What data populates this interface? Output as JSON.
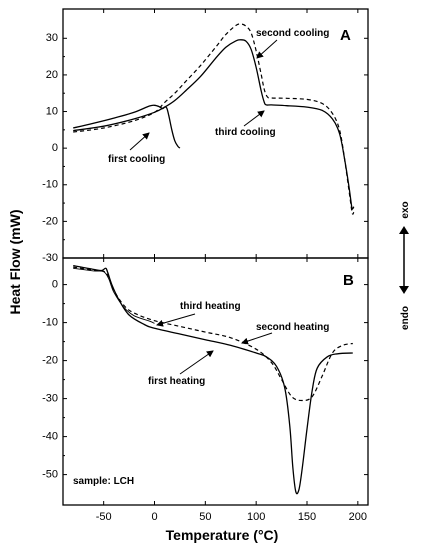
{
  "chart_data": [
    {
      "type": "line",
      "panel": "A",
      "ylabel": "Heat Flow (mW)",
      "xlabel": "Temperature (°C)",
      "xlim": [
        -90,
        210
      ],
      "ylim": [
        -30,
        38
      ],
      "yticks": [
        -30,
        -20,
        -10,
        0,
        10,
        20,
        30
      ],
      "xticks": [
        -50,
        0,
        50,
        100,
        150,
        200
      ],
      "series": [
        {
          "name": "first cooling",
          "style": "solid",
          "points": [
            [
              -80,
              5.5
            ],
            [
              -60,
              6.8
            ],
            [
              -40,
              8.2
            ],
            [
              -20,
              9.8
            ],
            [
              -5,
              11.5
            ],
            [
              0,
              11.7
            ],
            [
              5,
              11.3
            ],
            [
              8,
              10.8
            ],
            [
              10,
              11.2
            ],
            [
              12,
              11
            ],
            [
              14,
              9
            ],
            [
              17,
              5
            ],
            [
              20,
              2
            ],
            [
              23,
              0.5
            ],
            [
              25,
              0
            ]
          ]
        },
        {
          "name": "third cooling",
          "style": "solid",
          "points": [
            [
              -80,
              4.8
            ],
            [
              -50,
              6
            ],
            [
              -20,
              8
            ],
            [
              0,
              9.8
            ],
            [
              10,
              11.2
            ],
            [
              20,
              13
            ],
            [
              30,
              15.5
            ],
            [
              45,
              19.5
            ],
            [
              60,
              24.5
            ],
            [
              70,
              27.5
            ],
            [
              80,
              29.3
            ],
            [
              85,
              29.6
            ],
            [
              90,
              29.2
            ],
            [
              95,
              27
            ],
            [
              100,
              22
            ],
            [
              105,
              15.5
            ],
            [
              108,
              12.5
            ],
            [
              110,
              11.8
            ],
            [
              115,
              11.8
            ],
            [
              130,
              11.6
            ],
            [
              150,
              11.2
            ],
            [
              165,
              10.3
            ],
            [
              175,
              8
            ],
            [
              182,
              4
            ],
            [
              187,
              -3
            ],
            [
              191,
              -10
            ],
            [
              194,
              -16
            ],
            [
              195,
              -16.5
            ],
            [
              196,
              -16
            ]
          ]
        },
        {
          "name": "second cooling",
          "style": "dashed",
          "points": [
            [
              -80,
              4.4
            ],
            [
              -50,
              5.5
            ],
            [
              -20,
              7.5
            ],
            [
              0,
              9.8
            ],
            [
              10,
              12.5
            ],
            [
              20,
              15
            ],
            [
              30,
              18
            ],
            [
              45,
              22.5
            ],
            [
              60,
              27.5
            ],
            [
              70,
              31
            ],
            [
              80,
              33.5
            ],
            [
              85,
              33.9
            ],
            [
              90,
              33.3
            ],
            [
              95,
              31.5
            ],
            [
              100,
              26.5
            ],
            [
              105,
              20
            ],
            [
              108,
              16
            ],
            [
              111,
              14
            ],
            [
              115,
              13.7
            ],
            [
              130,
              13.6
            ],
            [
              150,
              13.3
            ],
            [
              165,
              12.2
            ],
            [
              175,
              9.5
            ],
            [
              182,
              5
            ],
            [
              187,
              -3
            ],
            [
              191,
              -11
            ],
            [
              194,
              -17
            ],
            [
              195,
              -18
            ],
            [
              196,
              -17.5
            ]
          ]
        }
      ],
      "annotations": [
        "second cooling",
        "third cooling",
        "first cooling"
      ]
    },
    {
      "type": "line",
      "panel": "B",
      "xlim": [
        -90,
        210
      ],
      "ylim": [
        -58,
        7
      ],
      "yticks": [
        -50,
        -40,
        -30,
        -20,
        -10,
        0
      ],
      "xticks": [
        -50,
        0,
        50,
        100,
        150,
        200
      ],
      "series": [
        {
          "name": "first heating",
          "style": "solid",
          "points": [
            [
              -80,
              5
            ],
            [
              -60,
              4
            ],
            [
              -52,
              3.7
            ],
            [
              -48,
              4.3
            ],
            [
              -46,
              3.2
            ],
            [
              -42,
              0
            ],
            [
              -35,
              -4
            ],
            [
              -25,
              -8
            ],
            [
              -10,
              -10.5
            ],
            [
              0,
              -11.5
            ],
            [
              25,
              -13
            ],
            [
              50,
              -14.5
            ],
            [
              75,
              -16
            ],
            [
              100,
              -18
            ],
            [
              110,
              -19
            ],
            [
              120,
              -21.5
            ],
            [
              128,
              -27
            ],
            [
              133,
              -37
            ],
            [
              136,
              -48
            ],
            [
              139,
              -54.5
            ],
            [
              142,
              -54
            ],
            [
              145,
              -49
            ],
            [
              150,
              -38
            ],
            [
              155,
              -28
            ],
            [
              160,
              -22
            ],
            [
              170,
              -19
            ],
            [
              180,
              -18.2
            ],
            [
              195,
              -18
            ]
          ]
        },
        {
          "name": "second heating",
          "style": "dashed",
          "points": [
            [
              -80,
              4.6
            ],
            [
              -60,
              3.8
            ],
            [
              -50,
              3.5
            ],
            [
              -45,
              2
            ],
            [
              -40,
              -1.5
            ],
            [
              -30,
              -5.5
            ],
            [
              -20,
              -7.5
            ],
            [
              0,
              -9.5
            ],
            [
              25,
              -11
            ],
            [
              50,
              -12.5
            ],
            [
              75,
              -14
            ],
            [
              100,
              -17
            ],
            [
              115,
              -20.5
            ],
            [
              125,
              -25
            ],
            [
              135,
              -29.5
            ],
            [
              145,
              -30.5
            ],
            [
              155,
              -29.5
            ],
            [
              165,
              -24
            ],
            [
              175,
              -18
            ],
            [
              185,
              -16
            ],
            [
              195,
              -15.5
            ]
          ]
        },
        {
          "name": "third heating",
          "style": "solid-thin",
          "points": [
            [
              -80,
              4.3
            ],
            [
              -60,
              3.6
            ],
            [
              -50,
              3.4
            ],
            [
              -45,
              1.5
            ],
            [
              -40,
              -2
            ],
            [
              -30,
              -6
            ],
            [
              -20,
              -8.2
            ],
            [
              -5,
              -9.6
            ],
            [
              0,
              -10.2
            ]
          ]
        }
      ],
      "annotations": [
        "third heating",
        "second heating",
        "first heating"
      ],
      "note": "sample: LCH"
    }
  ],
  "labels": {
    "panel_a": "A",
    "panel_b": "B",
    "y_axis_title": "Heat Flow (mW)",
    "x_axis_title": "Temperature (°C)",
    "exo": "exo",
    "endo": "endo",
    "sample": "sample: LCH",
    "ann_second_cooling": "second cooling",
    "ann_third_cooling": "third cooling",
    "ann_first_cooling": "first cooling",
    "ann_third_heating": "third heating",
    "ann_second_heating": "second heating",
    "ann_first_heating": "first heating"
  }
}
